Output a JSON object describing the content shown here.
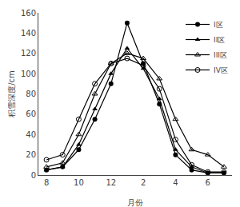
{
  "chart_data": {
    "type": "line",
    "xlabel": "月份",
    "ylabel": "积雪深度/cm",
    "categories": [
      "8",
      null,
      "10",
      null,
      "12",
      null,
      "2",
      null,
      "4",
      null,
      "6",
      null
    ],
    "series": [
      {
        "name": "I区",
        "color": "black",
        "marker": "circle",
        "values": [
          5,
          8,
          25,
          55,
          90,
          150,
          110,
          70,
          20,
          5,
          2,
          2
        ]
      },
      {
        "name": "II区",
        "color": "black",
        "marker": "triangle-up",
        "values": [
          5,
          8,
          30,
          65,
          100,
          125,
          105,
          75,
          25,
          8,
          2,
          2
        ]
      },
      {
        "name": "III区",
        "color": "black",
        "marker": "triangle-up-open",
        "values": [
          8,
          12,
          40,
          80,
          110,
          120,
          115,
          95,
          55,
          25,
          20,
          8
        ]
      },
      {
        "name": "IV区",
        "color": "black",
        "marker": "circle-open",
        "values": [
          15,
          20,
          55,
          90,
          110,
          115,
          108,
          85,
          35,
          10,
          3,
          3
        ]
      }
    ],
    "ylim": [
      0,
      160
    ],
    "yticks": [
      0,
      20,
      40,
      60,
      80,
      100,
      120,
      140,
      160
    ],
    "grid": false,
    "legend": "upper right"
  }
}
